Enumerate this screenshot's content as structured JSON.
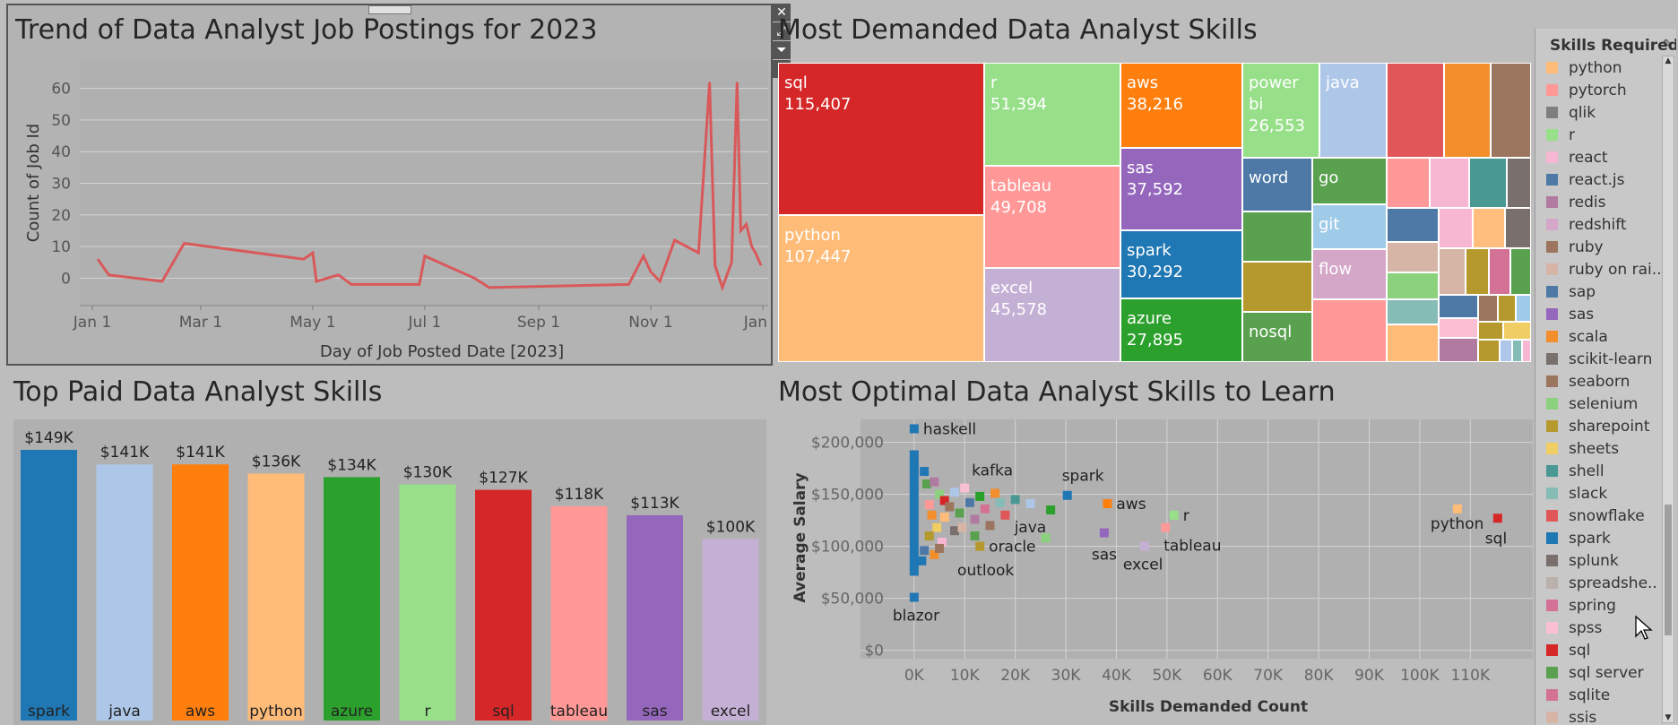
{
  "line_panel": {
    "title": "Trend of Data Analyst Job Postings for 2023",
    "xlabel": "Day of Job Posted Date [2023]",
    "ylabel": "Count of Job Id",
    "color": "#d9595b"
  },
  "treemap_panel": {
    "title": "Most Demanded Data Analyst Skills",
    "tiles": [
      {
        "skill": "sql",
        "value": "115,407",
        "color": "#d62728"
      },
      {
        "skill": "python",
        "value": "107,447",
        "color": "#ffbb78"
      },
      {
        "skill": "r",
        "value": "51,394",
        "color": "#98df8a"
      },
      {
        "skill": "tableau",
        "value": "49,708",
        "color": "#ff9896"
      },
      {
        "skill": "excel",
        "value": "45,578",
        "color": "#c5b0d5"
      },
      {
        "skill": "aws",
        "value": "38,216",
        "color": "#ff7f0e"
      },
      {
        "skill": "sas",
        "value": "37,592",
        "color": "#9467bd"
      },
      {
        "skill": "spark",
        "value": "30,292",
        "color": "#1f77b4"
      },
      {
        "skill": "azure",
        "value": "27,895",
        "color": "#2ca02c"
      },
      {
        "skill": "power bi",
        "value": "26,553",
        "color": "#98df8a"
      },
      {
        "skill": "java",
        "value": "",
        "color": "#aec7e8"
      },
      {
        "skill": "word",
        "value": "",
        "color": "#4e79a7"
      },
      {
        "skill": "go",
        "value": "",
        "color": "#59a14f"
      },
      {
        "skill": "git",
        "value": "",
        "color": "#a0cbe8"
      },
      {
        "skill": "flow",
        "value": "",
        "color": "#d4a6c8"
      },
      {
        "skill": "nosql",
        "value": "",
        "color": "#59a14f"
      }
    ]
  },
  "bar_panel": {
    "title": "Top Paid Data Analyst Skills"
  },
  "scatter_panel": {
    "title": "Most Optimal Data Analyst Skills to Learn",
    "xlabel": "Skills Demanded Count",
    "ylabel": "Average Salary"
  },
  "legend": {
    "title": "Skills Required",
    "items": [
      {
        "label": "python",
        "color": "#ffbb78"
      },
      {
        "label": "pytorch",
        "color": "#ff9896"
      },
      {
        "label": "qlik",
        "color": "#7f7f7f"
      },
      {
        "label": "r",
        "color": "#98df8a"
      },
      {
        "label": "react",
        "color": "#f7b6d2"
      },
      {
        "label": "react.js",
        "color": "#4e79a7"
      },
      {
        "label": "redis",
        "color": "#b07aa1"
      },
      {
        "label": "redshift",
        "color": "#d4a6c8"
      },
      {
        "label": "ruby",
        "color": "#9c755f"
      },
      {
        "label": "ruby on rai..",
        "color": "#d7b5a6"
      },
      {
        "label": "sap",
        "color": "#4e79a7"
      },
      {
        "label": "sas",
        "color": "#9467bd"
      },
      {
        "label": "scala",
        "color": "#f28e2b"
      },
      {
        "label": "scikit-learn",
        "color": "#79706e"
      },
      {
        "label": "seaborn",
        "color": "#9c755f"
      },
      {
        "label": "selenium",
        "color": "#8cd17d"
      },
      {
        "label": "sharepoint",
        "color": "#b6992d"
      },
      {
        "label": "sheets",
        "color": "#f1ce63"
      },
      {
        "label": "shell",
        "color": "#499894"
      },
      {
        "label": "slack",
        "color": "#86bcb6"
      },
      {
        "label": "snowflake",
        "color": "#e15759"
      },
      {
        "label": "spark",
        "color": "#1f77b4"
      },
      {
        "label": "splunk",
        "color": "#79706e"
      },
      {
        "label": "spreadshe..",
        "color": "#bab0ac"
      },
      {
        "label": "spring",
        "color": "#d37295"
      },
      {
        "label": "spss",
        "color": "#fabfd2"
      },
      {
        "label": "sql",
        "color": "#d62728"
      },
      {
        "label": "sql server",
        "color": "#59a14f"
      },
      {
        "label": "sqlite",
        "color": "#d37295"
      },
      {
        "label": "ssis",
        "color": "#d7b5a6"
      }
    ]
  },
  "chart_data": [
    {
      "type": "line",
      "title": "Trend of Data Analyst Job Postings for 2023",
      "xlabel": "Day of Job Posted Date [2023]",
      "ylabel": "Count of Job Id",
      "xticks": [
        "Jan 1",
        "Mar 1",
        "May 1",
        "Jul 1",
        "Sep 1",
        "Nov 1",
        "Jan 1"
      ],
      "yticks": [
        0,
        10,
        20,
        30,
        40,
        50,
        60
      ],
      "x": [
        "2023-01-04",
        "2023-01-10",
        "2023-02-08",
        "2023-02-20",
        "2023-04-26",
        "2023-05-01",
        "2023-05-03",
        "2023-05-15",
        "2023-05-22",
        "2023-06-28",
        "2023-07-01",
        "2023-07-28",
        "2023-08-05",
        "2023-10-20",
        "2023-10-28",
        "2023-11-01",
        "2023-11-06",
        "2023-11-14",
        "2023-11-27",
        "2023-12-03",
        "2023-12-06",
        "2023-12-10",
        "2023-12-15",
        "2023-12-18",
        "2023-12-20",
        "2023-12-23",
        "2023-12-26",
        "2023-12-28",
        "2023-12-31"
      ],
      "y": [
        6,
        1,
        -1,
        11,
        6,
        8,
        -1,
        1,
        -2,
        -2,
        7,
        0,
        -3,
        -2,
        7,
        2,
        -1,
        12,
        8,
        62,
        4,
        -3,
        5,
        62,
        15,
        17,
        10,
        8,
        4
      ],
      "ylim": [
        -5,
        65
      ]
    },
    {
      "type": "bar",
      "title": "Top Paid Data Analyst Skills",
      "categories": [
        "spark",
        "java",
        "aws",
        "python",
        "azure",
        "r",
        "sql",
        "tableau",
        "sas",
        "excel"
      ],
      "values": [
        149,
        141,
        141,
        136,
        134,
        130,
        127,
        118,
        113,
        100
      ],
      "labels": [
        "$149K",
        "$141K",
        "$141K",
        "$136K",
        "$134K",
        "$130K",
        "$127K",
        "$118K",
        "$113K",
        "$100K"
      ],
      "colors": [
        "#1f77b4",
        "#aec7e8",
        "#ff7f0e",
        "#ffbb78",
        "#2ca02c",
        "#98df8a",
        "#d62728",
        "#ff9896",
        "#9467bd",
        "#c5b0d5"
      ]
    },
    {
      "type": "scatter",
      "title": "Most Optimal Data Analyst Skills to Learn",
      "xlabel": "Skills Demanded Count",
      "ylabel": "Average Salary",
      "xticks": [
        "0K",
        "10K",
        "20K",
        "30K",
        "40K",
        "50K",
        "60K",
        "70K",
        "80K",
        "90K",
        "100K",
        "110K"
      ],
      "yticks": [
        "$0",
        "$50,000",
        "$100,000",
        "$150,000",
        "$200,000"
      ],
      "xlim": [
        -6000,
        122000
      ],
      "ylim": [
        -8000,
        222000
      ],
      "labeled_points": [
        {
          "skill": "haskell",
          "x": 0,
          "y": 213000,
          "color": "#1f77b4"
        },
        {
          "skill": "kafka",
          "x": 16000,
          "y": 151000,
          "color": "#f28e2b"
        },
        {
          "skill": "spark",
          "x": 30292,
          "y": 149000,
          "color": "#1f77b4"
        },
        {
          "skill": "aws",
          "x": 38216,
          "y": 141000,
          "color": "#ff7f0e"
        },
        {
          "skill": "r",
          "x": 51394,
          "y": 130000,
          "color": "#98df8a"
        },
        {
          "skill": "java",
          "x": 23000,
          "y": 141000,
          "color": "#aec7e8"
        },
        {
          "skill": "oracle",
          "x": 13000,
          "y": 100000,
          "color": "#b6992d"
        },
        {
          "skill": "sas",
          "x": 37592,
          "y": 113000,
          "color": "#9467bd"
        },
        {
          "skill": "tableau",
          "x": 49708,
          "y": 118000,
          "color": "#ff9896"
        },
        {
          "skill": "excel",
          "x": 45578,
          "y": 100000,
          "color": "#c5b0d5"
        },
        {
          "skill": "outlook",
          "x": 5000,
          "y": 98000,
          "color": "#9c755f"
        },
        {
          "skill": "blazor",
          "x": 0,
          "y": 51000,
          "color": "#1f77b4"
        },
        {
          "skill": "python",
          "x": 107447,
          "y": 136000,
          "color": "#ffbb78"
        },
        {
          "skill": "sql",
          "x": 115407,
          "y": 127000,
          "color": "#d62728"
        }
      ],
      "cluster_points": [
        [
          0,
          188000,
          "#1f77b4"
        ],
        [
          0,
          182000,
          "#1f77b4"
        ],
        [
          0,
          175000,
          "#1f77b4"
        ],
        [
          0,
          168000,
          "#1f77b4"
        ],
        [
          0,
          160000,
          "#1f77b4"
        ],
        [
          0,
          152000,
          "#1f77b4"
        ],
        [
          0,
          145000,
          "#1f77b4"
        ],
        [
          0,
          138000,
          "#1f77b4"
        ],
        [
          0,
          130000,
          "#1f77b4"
        ],
        [
          0,
          122000,
          "#1f77b4"
        ],
        [
          0,
          114000,
          "#1f77b4"
        ],
        [
          0,
          106000,
          "#1f77b4"
        ],
        [
          0,
          98000,
          "#1f77b4"
        ],
        [
          0,
          90000,
          "#1f77b4"
        ],
        [
          0,
          82000,
          "#1f77b4"
        ],
        [
          0,
          76000,
          "#1f77b4"
        ],
        [
          2000,
          172000,
          "#1f77b4"
        ],
        [
          2500,
          160000,
          "#59a14f"
        ],
        [
          4000,
          162000,
          "#b07aa1"
        ],
        [
          3000,
          140000,
          "#ff9896"
        ],
        [
          3500,
          130000,
          "#f28e2b"
        ],
        [
          5000,
          150000,
          "#8cd17d"
        ],
        [
          6000,
          144000,
          "#d62728"
        ],
        [
          4500,
          118000,
          "#f1ce63"
        ],
        [
          7000,
          138000,
          "#9c755f"
        ],
        [
          8000,
          152000,
          "#aec7e8"
        ],
        [
          9000,
          132000,
          "#59a14f"
        ],
        [
          10000,
          156000,
          "#fabfd2"
        ],
        [
          11000,
          142000,
          "#4e79a7"
        ],
        [
          12000,
          126000,
          "#b07aa1"
        ],
        [
          13000,
          148000,
          "#2ca02c"
        ],
        [
          14000,
          136000,
          "#d37295"
        ],
        [
          15000,
          120000,
          "#9c755f"
        ],
        [
          17000,
          142000,
          "#86bcb6"
        ],
        [
          18000,
          130000,
          "#e15759"
        ],
        [
          20000,
          145000,
          "#499894"
        ],
        [
          3000,
          110000,
          "#b6992d"
        ],
        [
          5500,
          104000,
          "#f7b6d2"
        ],
        [
          8000,
          115000,
          "#79706e"
        ],
        [
          2000,
          96000,
          "#4e79a7"
        ],
        [
          6000,
          128000,
          "#ffbb78"
        ],
        [
          9500,
          118000,
          "#d7b5a6"
        ],
        [
          12000,
          110000,
          "#59a14f"
        ],
        [
          27000,
          135000,
          "#2ca02c"
        ],
        [
          26000,
          108000,
          "#8cd17d"
        ],
        [
          1500,
          86000,
          "#1f77b4"
        ],
        [
          4000,
          92000,
          "#f28e2b"
        ]
      ]
    }
  ]
}
